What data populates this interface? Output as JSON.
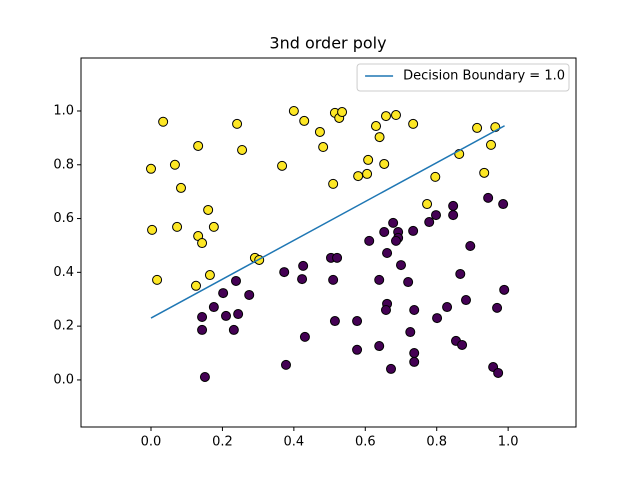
{
  "chart_data": {
    "type": "scatter",
    "title": "3nd order poly",
    "xlim": [
      -0.196,
      1.19
    ],
    "ylim": [
      -0.175,
      1.197
    ],
    "xticks": [
      {
        "value": 0,
        "label": "0.0"
      },
      0.2,
      0.4,
      0.6,
      0.8,
      {
        "value": 1,
        "label": "1.0"
      }
    ],
    "yticks": [
      {
        "value": 0,
        "label": "0.0"
      },
      0.2,
      0.4,
      0.6,
      0.8,
      {
        "value": 1,
        "label": "1.0"
      }
    ],
    "legend": "upper right",
    "series": [
      {
        "type": "scatter",
        "color": "#fde725",
        "x": [
          0.0,
          0.034,
          0.067,
          0.084,
          0.003,
          0.073,
          0.017,
          0.132,
          0.241,
          0.255,
          0.16,
          0.176,
          0.132,
          0.143,
          0.165,
          0.126,
          0.291,
          0.303,
          0.367,
          0.4,
          0.429,
          0.473,
          0.482,
          0.515,
          0.527,
          0.535,
          0.51,
          0.58,
          0.605,
          0.608,
          0.63,
          0.64,
          0.658,
          0.686,
          0.653,
          0.734,
          0.796,
          0.773,
          0.863,
          0.913,
          0.933,
          0.952,
          0.964
        ],
        "values": [
          0.785,
          0.96,
          0.8,
          0.714,
          0.558,
          0.569,
          0.372,
          0.87,
          0.952,
          0.855,
          0.632,
          0.569,
          0.535,
          0.509,
          0.39,
          0.35,
          0.454,
          0.446,
          0.796,
          1.0,
          0.963,
          0.922,
          0.866,
          0.993,
          0.974,
          0.996,
          0.729,
          0.758,
          0.766,
          0.818,
          0.944,
          0.903,
          0.981,
          0.985,
          0.803,
          0.952,
          0.755,
          0.654,
          0.84,
          0.937,
          0.77,
          0.874,
          0.94
        ]
      },
      {
        "type": "scatter",
        "color": "#440154",
        "x": [
          0.151,
          0.378,
          0.143,
          0.143,
          0.176,
          0.202,
          0.21,
          0.238,
          0.244,
          0.232,
          0.275,
          0.373,
          0.426,
          0.423,
          0.431,
          0.504,
          0.521,
          0.51,
          0.515,
          0.577,
          0.577,
          0.611,
          0.653,
          0.678,
          0.692,
          0.692,
          0.686,
          0.661,
          0.639,
          0.661,
          0.658,
          0.639,
          0.672,
          0.7,
          0.72,
          0.734,
          0.737,
          0.726,
          0.737,
          0.737,
          0.779,
          0.798,
          0.801,
          0.829,
          0.846,
          0.846,
          0.854,
          0.871,
          0.866,
          0.882,
          0.894,
          0.944,
          0.986,
          0.969,
          0.989,
          0.958,
          0.972
        ],
        "values": [
          0.011,
          0.056,
          0.234,
          0.186,
          0.271,
          0.323,
          0.238,
          0.368,
          0.245,
          0.186,
          0.316,
          0.401,
          0.424,
          0.375,
          0.16,
          0.454,
          0.454,
          0.372,
          0.219,
          0.219,
          0.112,
          0.517,
          0.55,
          0.584,
          0.55,
          0.528,
          0.517,
          0.472,
          0.372,
          0.283,
          0.26,
          0.126,
          0.041,
          0.427,
          0.364,
          0.554,
          0.26,
          0.178,
          0.1,
          0.067,
          0.587,
          0.613,
          0.23,
          0.271,
          0.647,
          0.613,
          0.145,
          0.13,
          0.394,
          0.297,
          0.498,
          0.677,
          0.654,
          0.268,
          0.335,
          0.048,
          0.026
        ]
      },
      {
        "type": "line",
        "name": "Decision Boundary = 1.0",
        "color": "#1f77b4",
        "x": [
          0.0,
          0.99
        ],
        "values": [
          0.23,
          0.945
        ]
      }
    ]
  }
}
